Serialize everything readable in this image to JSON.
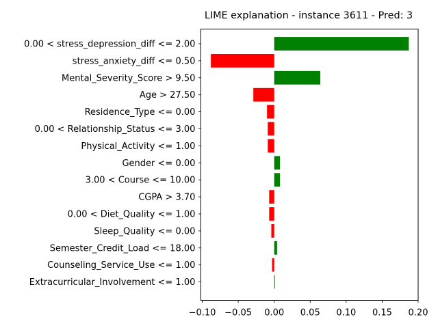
{
  "chart_data": {
    "type": "bar",
    "orientation": "horizontal",
    "title": "LIME explanation - instance 3611 - Pred: 3",
    "xlabel": "",
    "ylabel": "",
    "xlim": [
      -0.102,
      0.2
    ],
    "xticks": [
      -0.1,
      -0.05,
      0.0,
      0.05,
      0.1,
      0.15,
      0.2
    ],
    "xtick_labels": [
      "−0.10",
      "−0.05",
      "0.00",
      "0.05",
      "0.10",
      "0.15",
      "0.20"
    ],
    "grid": false,
    "legend": "none",
    "positive_color": "#008000",
    "negative_color": "#ff0000",
    "categories": [
      "0.00 < stress_depression_diff <= 2.00",
      "stress_anxiety_diff <= 0.50",
      "Mental_Severity_Score > 9.50",
      "Age > 27.50",
      "Residence_Type <= 0.00",
      "0.00 < Relationship_Status <= 3.00",
      "Physical_Activity <= 1.00",
      "Gender <= 0.00",
      "3.00 < Course <= 10.00",
      "CGPA > 3.70",
      "0.00 < Diet_Quality <= 1.00",
      "Sleep_Quality <= 0.00",
      "Semester_Credit_Load <= 18.00",
      "Counseling_Service_Use <= 1.00",
      "Extracurricular_Involvement <= 1.00"
    ],
    "values": [
      0.187,
      -0.088,
      0.064,
      -0.029,
      -0.01,
      -0.009,
      -0.009,
      0.008,
      0.008,
      -0.007,
      -0.007,
      -0.004,
      0.004,
      -0.003,
      0.001
    ]
  }
}
